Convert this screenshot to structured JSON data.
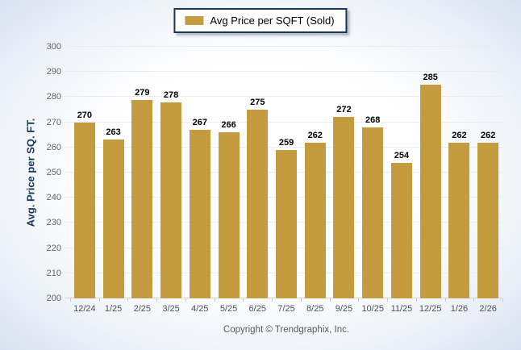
{
  "chart_data": {
    "type": "bar",
    "title": "Avg Price per SQFT (Sold)",
    "legend_label": "Avg Price per SQFT (Sold)",
    "legend_position": "top-center",
    "categories": [
      "12/24",
      "1/25",
      "2/25",
      "3/25",
      "4/25",
      "5/25",
      "6/25",
      "7/25",
      "8/25",
      "9/25",
      "10/25",
      "11/25",
      "12/25",
      "1/26",
      "2/26"
    ],
    "values": [
      270,
      263,
      279,
      278,
      267,
      266,
      275,
      259,
      262,
      272,
      268,
      254,
      285,
      262,
      262
    ],
    "xlabel": "",
    "ylabel": "Avg. Price per SQ. FT.",
    "ylim": [
      200,
      300
    ],
    "ytick_step": 10,
    "grid": true,
    "bar_color": "#C59B3F"
  },
  "footer": {
    "copyright": "Copyright © Trendgraphix, Inc."
  },
  "colors": {
    "bar_gold": "#C59B3F",
    "navy": "#17375D",
    "gridline": "#ECECEC",
    "axis_line": "#D4D4D4",
    "y_tick_label": "#636363",
    "x_tick_label": "#4F4F57",
    "data_label": "#000000",
    "footer_text": "#595959",
    "background_edge": "#D9E1F1"
  }
}
